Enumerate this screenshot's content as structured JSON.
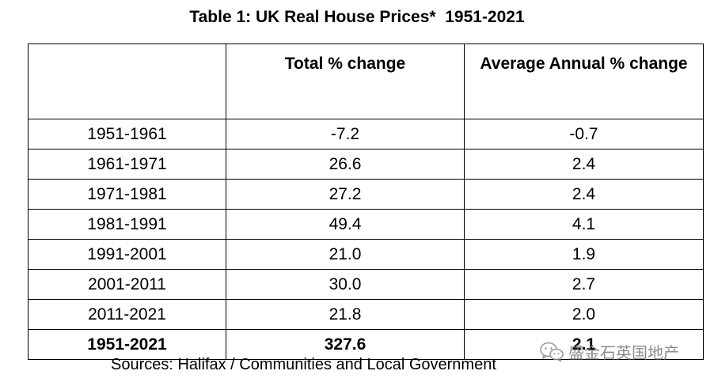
{
  "title": "Table 1: UK Real House Prices*  1951-2021",
  "table": {
    "headers": [
      "",
      "Total % change",
      "Average  Annual % change"
    ],
    "rows": [
      {
        "period": "1951-1961",
        "total": "-7.2",
        "annual": "-0.7"
      },
      {
        "period": "1961-1971",
        "total": "26.6",
        "annual": "2.4"
      },
      {
        "period": "1971-1981",
        "total": "27.2",
        "annual": "2.4"
      },
      {
        "period": "1981-1991",
        "total": "49.4",
        "annual": "4.1"
      },
      {
        "period": "1991-2001",
        "total": "21.0",
        "annual": "1.9"
      },
      {
        "period": "2001-2011",
        "total": "30.0",
        "annual": "2.7"
      },
      {
        "period": "2011-2021",
        "total": "21.8",
        "annual": "2.0"
      }
    ],
    "total_row": {
      "period": "1951-2021",
      "total": "327.6",
      "annual": "2.1"
    }
  },
  "sources": "Sources: Halifax / Communities and Local Government",
  "watermark": {
    "icon": "wechat-icon",
    "text": "盛金石英国地产"
  }
}
